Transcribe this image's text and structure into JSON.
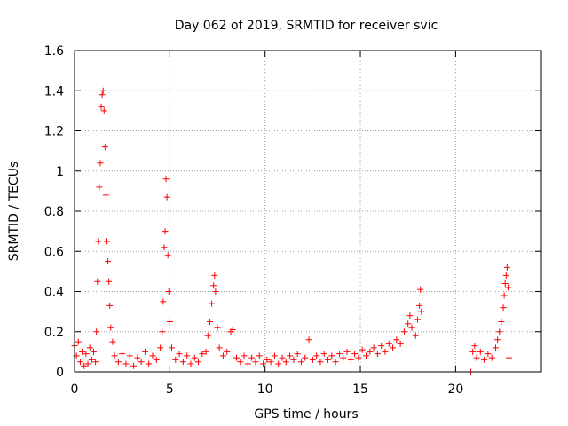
{
  "chart_data": {
    "type": "scatter",
    "title": "Day 062 of 2019, SRMTID for receiver svic",
    "xlabel": "GPS time / hours",
    "ylabel": "SRMTID / TECUs",
    "xlim": [
      0,
      24.5
    ],
    "ylim": [
      0,
      1.6
    ],
    "xticks": [
      0,
      5,
      10,
      15,
      20
    ],
    "xtick_labels": [
      "0",
      "5",
      "10",
      "15",
      "20"
    ],
    "yticks": [
      0,
      0.2,
      0.4,
      0.6,
      0.8,
      1.0,
      1.2,
      1.4,
      1.6
    ],
    "ytick_labels": [
      "0",
      "0.2",
      "0.4",
      "0.6",
      "0.8",
      "1",
      "1.2",
      "1.4",
      "1.6"
    ],
    "grid": true,
    "marker": "+",
    "color": "#ff0000",
    "series": [
      {
        "name": "svic",
        "points": [
          [
            0.0,
            0.13
          ],
          [
            0.1,
            0.08
          ],
          [
            0.2,
            0.15
          ],
          [
            0.3,
            0.05
          ],
          [
            0.4,
            0.1
          ],
          [
            0.5,
            0.03
          ],
          [
            0.6,
            0.09
          ],
          [
            0.7,
            0.04
          ],
          [
            0.8,
            0.12
          ],
          [
            0.9,
            0.06
          ],
          [
            1.0,
            0.1
          ],
          [
            1.1,
            0.05
          ],
          [
            1.15,
            0.2
          ],
          [
            1.2,
            0.45
          ],
          [
            1.25,
            0.65
          ],
          [
            1.3,
            0.92
          ],
          [
            1.35,
            1.04
          ],
          [
            1.4,
            1.32
          ],
          [
            1.45,
            1.38
          ],
          [
            1.5,
            1.4
          ],
          [
            1.55,
            1.3
          ],
          [
            1.6,
            1.12
          ],
          [
            1.65,
            0.88
          ],
          [
            1.7,
            0.65
          ],
          [
            1.75,
            0.55
          ],
          [
            1.8,
            0.45
          ],
          [
            1.85,
            0.33
          ],
          [
            1.9,
            0.22
          ],
          [
            2.0,
            0.15
          ],
          [
            2.1,
            0.08
          ],
          [
            2.3,
            0.05
          ],
          [
            2.5,
            0.09
          ],
          [
            2.7,
            0.04
          ],
          [
            2.9,
            0.08
          ],
          [
            3.1,
            0.03
          ],
          [
            3.3,
            0.07
          ],
          [
            3.5,
            0.05
          ],
          [
            3.7,
            0.1
          ],
          [
            3.9,
            0.04
          ],
          [
            4.1,
            0.08
          ],
          [
            4.3,
            0.06
          ],
          [
            4.5,
            0.12
          ],
          [
            4.6,
            0.2
          ],
          [
            4.65,
            0.35
          ],
          [
            4.7,
            0.62
          ],
          [
            4.75,
            0.7
          ],
          [
            4.8,
            0.96
          ],
          [
            4.85,
            0.87
          ],
          [
            4.9,
            0.58
          ],
          [
            4.95,
            0.4
          ],
          [
            5.0,
            0.25
          ],
          [
            5.1,
            0.12
          ],
          [
            5.3,
            0.06
          ],
          [
            5.5,
            0.09
          ],
          [
            5.7,
            0.05
          ],
          [
            5.9,
            0.08
          ],
          [
            6.1,
            0.04
          ],
          [
            6.3,
            0.07
          ],
          [
            6.5,
            0.05
          ],
          [
            6.7,
            0.09
          ],
          [
            6.9,
            0.1
          ],
          [
            7.0,
            0.18
          ],
          [
            7.1,
            0.25
          ],
          [
            7.2,
            0.34
          ],
          [
            7.3,
            0.43
          ],
          [
            7.35,
            0.48
          ],
          [
            7.4,
            0.4
          ],
          [
            7.5,
            0.22
          ],
          [
            7.6,
            0.12
          ],
          [
            7.8,
            0.08
          ],
          [
            8.0,
            0.1
          ],
          [
            8.2,
            0.2
          ],
          [
            8.3,
            0.21
          ],
          [
            8.5,
            0.07
          ],
          [
            8.7,
            0.05
          ],
          [
            8.9,
            0.08
          ],
          [
            9.1,
            0.04
          ],
          [
            9.3,
            0.07
          ],
          [
            9.5,
            0.05
          ],
          [
            9.7,
            0.08
          ],
          [
            9.9,
            0.04
          ],
          [
            10.1,
            0.06
          ],
          [
            10.3,
            0.05
          ],
          [
            10.5,
            0.08
          ],
          [
            10.7,
            0.04
          ],
          [
            10.9,
            0.07
          ],
          [
            11.1,
            0.05
          ],
          [
            11.3,
            0.08
          ],
          [
            11.5,
            0.06
          ],
          [
            11.7,
            0.09
          ],
          [
            11.9,
            0.05
          ],
          [
            12.1,
            0.07
          ],
          [
            12.3,
            0.16
          ],
          [
            12.5,
            0.06
          ],
          [
            12.7,
            0.08
          ],
          [
            12.9,
            0.05
          ],
          [
            13.1,
            0.09
          ],
          [
            13.3,
            0.06
          ],
          [
            13.5,
            0.08
          ],
          [
            13.7,
            0.05
          ],
          [
            13.9,
            0.09
          ],
          [
            14.1,
            0.07
          ],
          [
            14.3,
            0.1
          ],
          [
            14.5,
            0.06
          ],
          [
            14.7,
            0.09
          ],
          [
            14.9,
            0.07
          ],
          [
            15.1,
            0.11
          ],
          [
            15.3,
            0.08
          ],
          [
            15.5,
            0.1
          ],
          [
            15.7,
            0.12
          ],
          [
            15.9,
            0.09
          ],
          [
            16.1,
            0.13
          ],
          [
            16.3,
            0.1
          ],
          [
            16.5,
            0.14
          ],
          [
            16.7,
            0.12
          ],
          [
            16.9,
            0.16
          ],
          [
            17.1,
            0.14
          ],
          [
            17.3,
            0.2
          ],
          [
            17.5,
            0.24
          ],
          [
            17.6,
            0.28
          ],
          [
            17.7,
            0.22
          ],
          [
            17.9,
            0.18
          ],
          [
            18.0,
            0.26
          ],
          [
            18.1,
            0.33
          ],
          [
            18.15,
            0.41
          ],
          [
            18.2,
            0.3
          ],
          [
            20.8,
            0.0
          ],
          [
            20.9,
            0.1
          ],
          [
            21.0,
            0.13
          ],
          [
            21.1,
            0.07
          ],
          [
            21.3,
            0.1
          ],
          [
            21.5,
            0.06
          ],
          [
            21.7,
            0.09
          ],
          [
            21.9,
            0.07
          ],
          [
            22.1,
            0.12
          ],
          [
            22.2,
            0.16
          ],
          [
            22.3,
            0.2
          ],
          [
            22.4,
            0.25
          ],
          [
            22.5,
            0.32
          ],
          [
            22.55,
            0.38
          ],
          [
            22.6,
            0.44
          ],
          [
            22.65,
            0.48
          ],
          [
            22.7,
            0.52
          ],
          [
            22.75,
            0.42
          ],
          [
            22.8,
            0.07
          ]
        ]
      }
    ]
  }
}
